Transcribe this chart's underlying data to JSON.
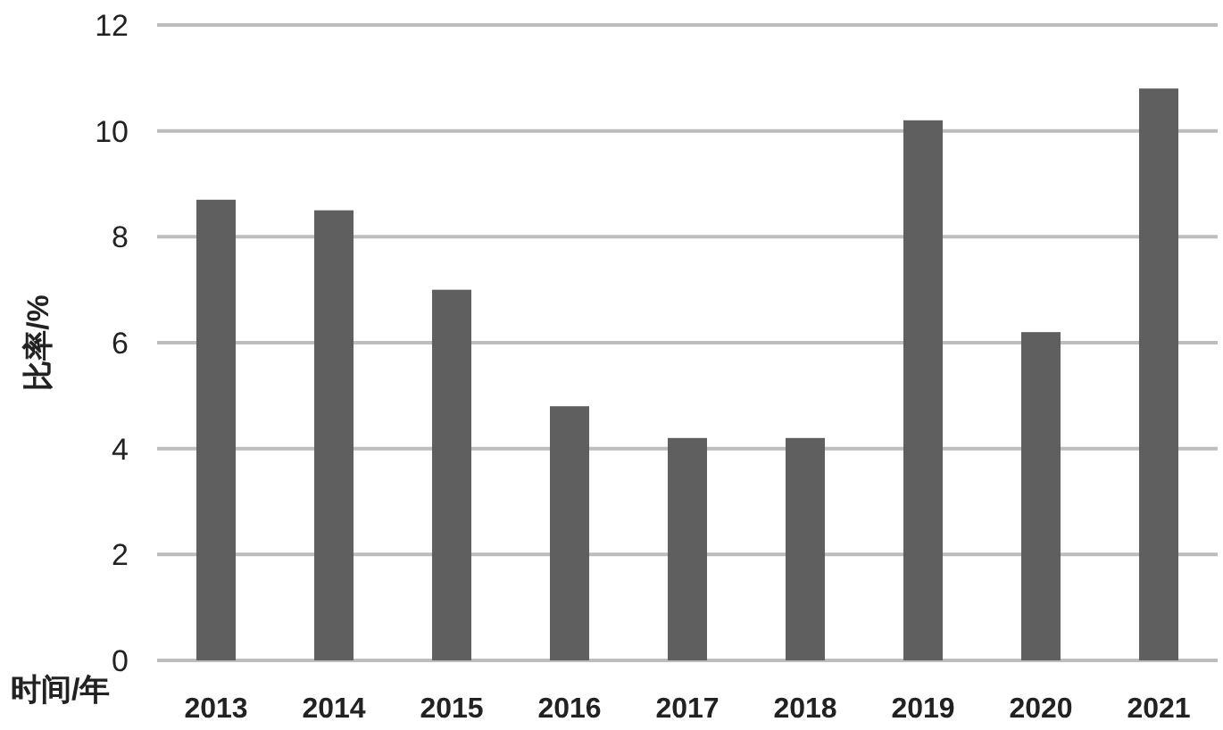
{
  "chart_data": {
    "type": "bar",
    "xlabel": "时间/年",
    "ylabel": "比率/%",
    "categories": [
      "2013",
      "2014",
      "2015",
      "2016",
      "2017",
      "2018",
      "2019",
      "2020",
      "2021"
    ],
    "values": [
      8.7,
      8.5,
      7.0,
      4.8,
      4.2,
      4.2,
      10.2,
      6.2,
      10.8
    ],
    "color": "#5f5f5f",
    "ylim": [
      0,
      12
    ],
    "yticks": [
      0,
      2,
      4,
      6,
      8,
      10,
      12
    ],
    "grid": "y"
  }
}
